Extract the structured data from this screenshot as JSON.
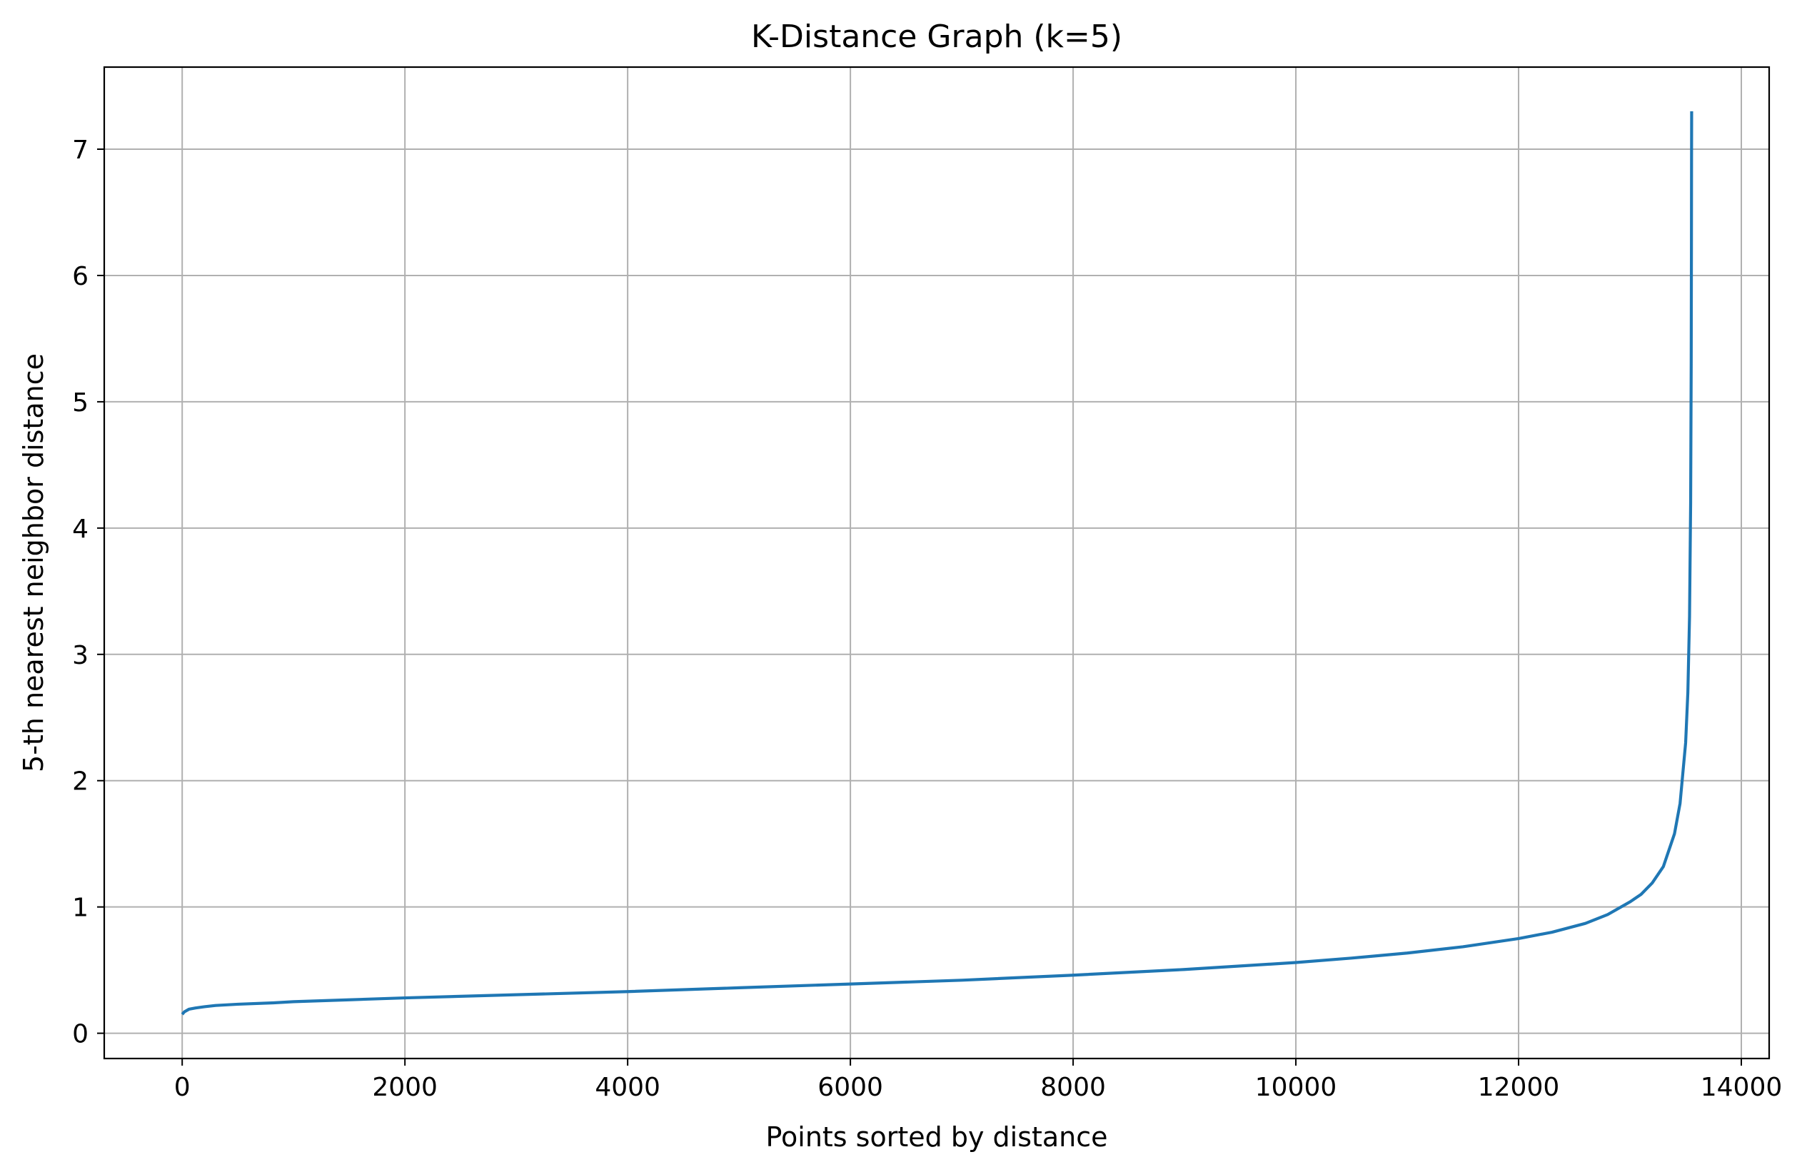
{
  "chart_data": {
    "type": "line",
    "title": "K-Distance Graph (k=5)",
    "xlabel": "Points sorted by distance",
    "ylabel": "5-th nearest neighbor distance",
    "xlim": [
      -700,
      14250
    ],
    "ylim": [
      -0.2,
      7.65
    ],
    "x_ticks": [
      0,
      2000,
      4000,
      6000,
      8000,
      10000,
      12000,
      14000
    ],
    "x_tick_labels": [
      "0",
      "2000",
      "4000",
      "6000",
      "8000",
      "10000",
      "12000",
      "14000"
    ],
    "y_ticks": [
      0,
      1,
      2,
      3,
      4,
      5,
      6,
      7
    ],
    "y_tick_labels": [
      "0",
      "1",
      "2",
      "3",
      "4",
      "5",
      "6",
      "7"
    ],
    "grid": true,
    "legend": "none",
    "series": [
      {
        "color": "#1f77b4",
        "x": [
          0,
          20,
          60,
          120,
          200,
          300,
          500,
          800,
          1000,
          1500,
          2000,
          3000,
          4000,
          5000,
          6000,
          7000,
          8000,
          9000,
          10000,
          10500,
          11000,
          11500,
          12000,
          12300,
          12600,
          12800,
          12900,
          13000,
          13100,
          13200,
          13300,
          13400,
          13450,
          13500,
          13520,
          13535,
          13545,
          13550,
          13552,
          13553,
          13554
        ],
        "y": [
          0.15,
          0.17,
          0.19,
          0.2,
          0.21,
          0.22,
          0.23,
          0.24,
          0.25,
          0.265,
          0.28,
          0.305,
          0.33,
          0.36,
          0.39,
          0.42,
          0.46,
          0.505,
          0.56,
          0.595,
          0.635,
          0.685,
          0.75,
          0.8,
          0.87,
          0.94,
          0.99,
          1.04,
          1.1,
          1.19,
          1.32,
          1.58,
          1.82,
          2.3,
          2.7,
          3.3,
          4.2,
          5.3,
          6.2,
          6.9,
          7.3
        ]
      }
    ]
  }
}
